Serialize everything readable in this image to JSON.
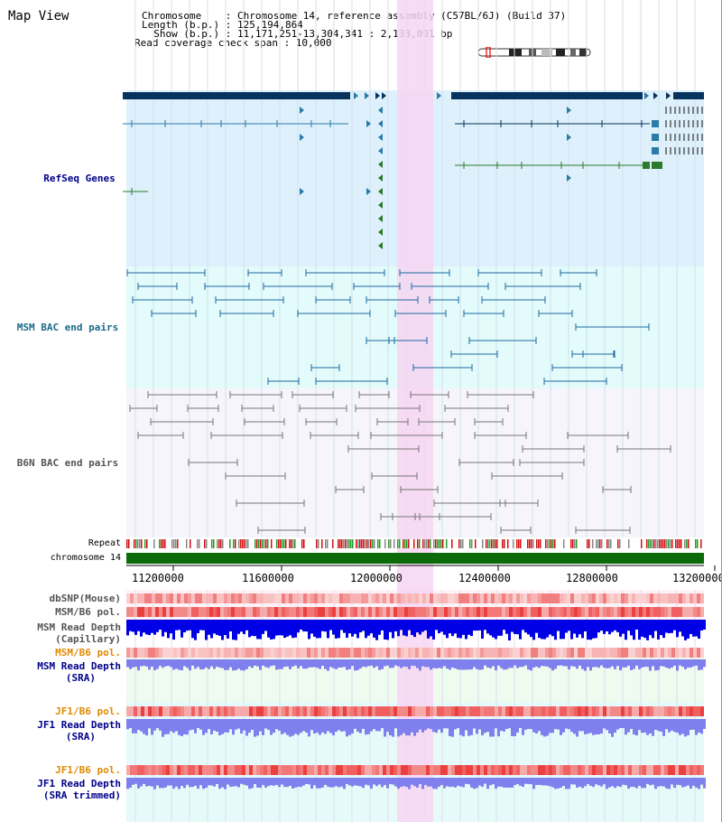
{
  "app": {
    "title": "Map View"
  },
  "header": {
    "lines": [
      "Chromosome    : Chromosome 14, reference assembly (C57BL/6J) (Build 37)",
      "Length (b.p.) : 125,194,864",
      "  Show (b.p.) : 11,171,251-13,304,341 : 2,133,091 bp",
      "Read coverage check span : 10,000"
    ]
  },
  "tracks": {
    "refseq": "RefSeq Genes",
    "msm_bac": "MSM BAC end pairs",
    "b6n_bac": "B6N BAC end pairs",
    "repeat": "Repeat",
    "chromosome": "chromosome 14",
    "dbsnp": "dbSNP(Mouse)",
    "msm_b6_pol": "MSM/B6 pol.",
    "msm_depth_cap_1": "MSM Read Depth",
    "msm_depth_cap_2": "(Capillary)",
    "msm_b6_pol_2": "MSM/B6 pol.",
    "msm_depth_sra_1": "MSM Read Depth",
    "msm_depth_sra_2": "(SRA)",
    "jf1_b6_pol": "JF1/B6 pol.",
    "jf1_depth_sra_1": "JF1 Read Depth",
    "jf1_depth_sra_2": "(SRA)",
    "jf1_b6_pol_2": "JF1/B6 pol.",
    "jf1_depth_trim_1": "JF1 Read Depth",
    "jf1_depth_trim_2": "(SRA trimmed)"
  },
  "axis": {
    "ticks": [
      "11200000",
      "11600000",
      "12000000",
      "12400000",
      "12800000",
      "13200000"
    ]
  },
  "colors": {
    "refseq_bg": "#ddf0fb",
    "msm_bg": "#e3fbfb",
    "b6n_bg": "#f5f5fb",
    "highlight": "#f7d5f2",
    "chromosome": "#0b6b0b",
    "gene_dark": "#07335e",
    "gene_mid": "#2b7aa8",
    "gene_green": "#2c7a2c",
    "msm_blue": "#1c6aa0",
    "b6n_grey": "#777777",
    "capillary": "#0000e6",
    "sra": "#7f7fee",
    "label_blue": "#00008b",
    "label_teal": "#1a6a8a",
    "label_orange": "#e08a00",
    "label_grey": "#555555"
  }
}
